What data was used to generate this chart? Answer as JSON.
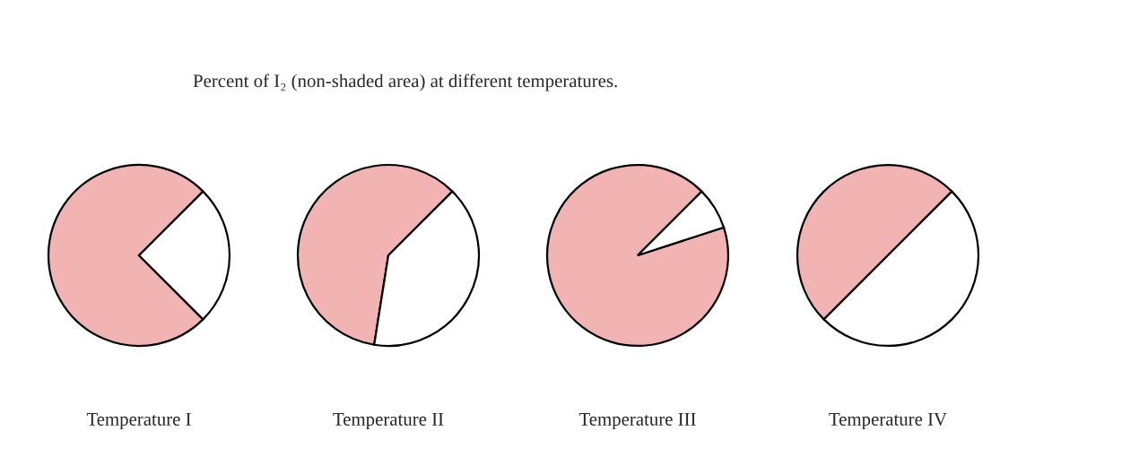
{
  "chart_data": [
    {
      "type": "pie",
      "title": "Percent of I₂ (non-shaded area) at different temperatures.",
      "xlabel": "Temperature I",
      "categories": [
        null,
        null
      ],
      "values": [
        75,
        25
      ],
      "colors": [
        "#f2b3b3",
        "#ffffff"
      ]
    },
    {
      "type": "pie",
      "xlabel": "Temperature II",
      "categories": [
        null,
        null
      ],
      "values": [
        60,
        40
      ],
      "colors": [
        "#f2b3b3",
        "#ffffff"
      ]
    },
    {
      "type": "pie",
      "xlabel": "Temperature III",
      "categories": [
        null,
        null
      ],
      "values": [
        92.5,
        7.5
      ],
      "colors": [
        "#f2b3b3",
        "#ffffff"
      ]
    },
    {
      "type": "pie",
      "xlabel": "Temperature IV",
      "categories": [
        null,
        null
      ],
      "values": [
        50,
        50
      ],
      "colors": [
        "#f2b3b3",
        "#ffffff"
      ]
    }
  ]
}
